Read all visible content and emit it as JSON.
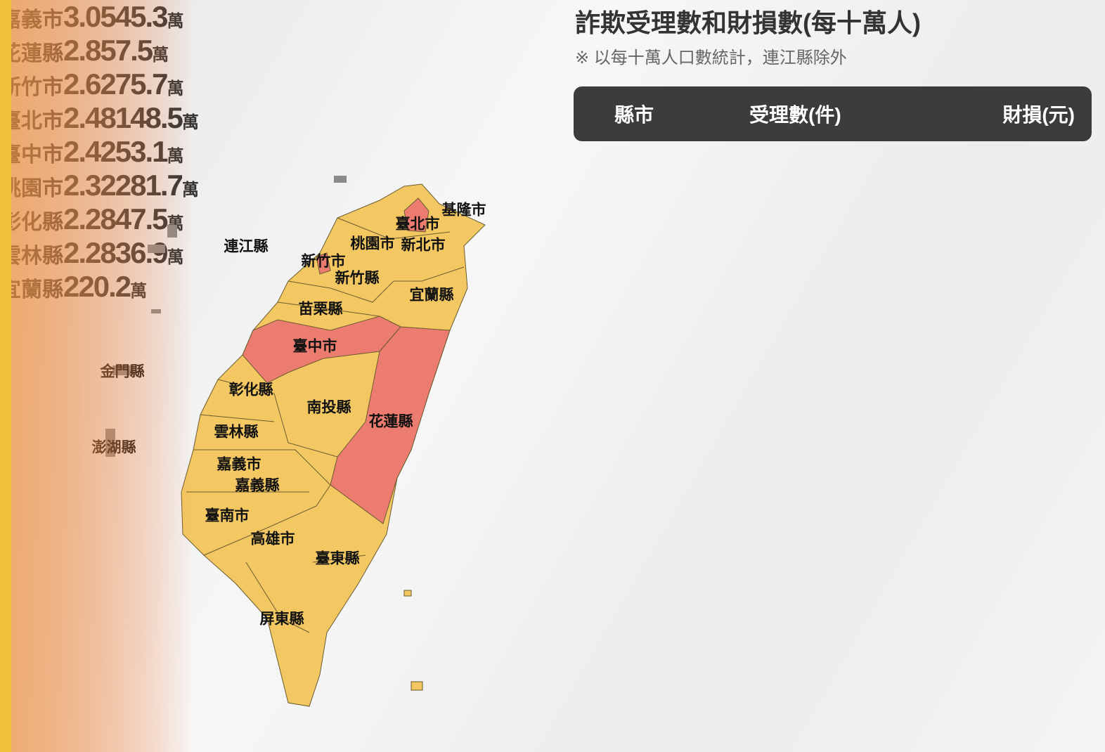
{
  "header": {
    "title": "詐欺受理數和財損數(每十萬人)",
    "subtitle": "※ 以每十萬人口數統計，連江縣除外"
  },
  "table": {
    "columns": [
      "縣市",
      "受理數(件)",
      "財損(元)"
    ],
    "unit": "萬",
    "rows": [
      {
        "city": "嘉義市",
        "count": 3.05,
        "loss": 45.3,
        "color": "#e84a4a"
      },
      {
        "city": "花蓮縣",
        "count": 2.85,
        "loss": 7.5,
        "color": "#e84a4a"
      },
      {
        "city": "新竹市",
        "count": 2.62,
        "loss": 75.7,
        "color": "#e84a4a"
      },
      {
        "city": "臺北市",
        "count": 2.48,
        "loss": 148.5,
        "color": "#e84a4a"
      },
      {
        "city": "臺中市",
        "count": 2.42,
        "loss": 53.1,
        "color": "#e84a4a"
      },
      {
        "city": "桃園市",
        "count": 2.32,
        "loss": 281.7,
        "color": "#f2c23e"
      },
      {
        "city": "彰化縣",
        "count": 2.28,
        "loss": 47.5,
        "color": "#f2c23e"
      },
      {
        "city": "雲林縣",
        "count": 2.28,
        "loss": 36.9,
        "color": "#f2c23e"
      },
      {
        "city": "宜蘭縣",
        "count": 2,
        "loss": 20.2,
        "color": "#f2c23e"
      }
    ]
  },
  "map": {
    "labels": [
      "連江縣",
      "金門縣",
      "澎湖縣",
      "基隆市",
      "臺北市",
      "新北市",
      "桃園市",
      "新竹市",
      "新竹縣",
      "宜蘭縣",
      "苗栗縣",
      "臺中市",
      "彰化縣",
      "南投縣",
      "花蓮縣",
      "雲林縣",
      "嘉義市",
      "嘉義縣",
      "臺南市",
      "高雄市",
      "臺東縣",
      "屏東縣"
    ]
  }
}
